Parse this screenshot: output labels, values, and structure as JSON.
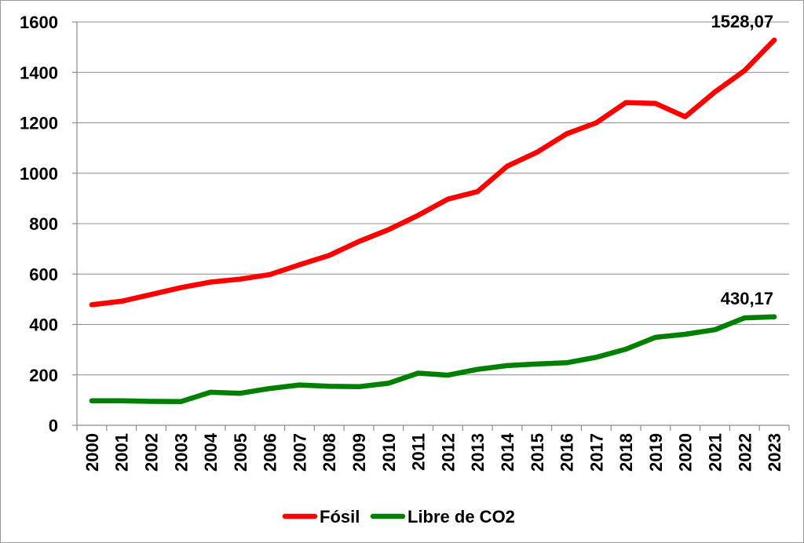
{
  "chart_data": {
    "type": "line",
    "title": "",
    "xlabel": "",
    "ylabel": "",
    "ylim": [
      0,
      1600
    ],
    "yticks": [
      0,
      200,
      400,
      600,
      800,
      1000,
      1200,
      1400,
      1600
    ],
    "grid": true,
    "legend_position": "bottom",
    "categories": [
      "2000",
      "2001",
      "2002",
      "2003",
      "2004",
      "2005",
      "2006",
      "2007",
      "2008",
      "2009",
      "2010",
      "2011",
      "2012",
      "2013",
      "2014",
      "2015",
      "2016",
      "2017",
      "2018",
      "2019",
      "2020",
      "2021",
      "2022",
      "2023"
    ],
    "series": [
      {
        "name": "Fósil",
        "color": "#ff0000",
        "values": [
          478,
          492,
          519,
          546,
          568,
          580,
          598,
          637,
          674,
          729,
          776,
          833,
          897,
          927,
          1028,
          1083,
          1156,
          1200,
          1280,
          1277,
          1224,
          1322,
          1407,
          1528.07
        ]
      },
      {
        "name": "Libre de CO2",
        "color": "#008000",
        "values": [
          97,
          97,
          95,
          94,
          131,
          127,
          146,
          160,
          155,
          153,
          167,
          207,
          199,
          222,
          237,
          243,
          248,
          270,
          302,
          349,
          361,
          379,
          426,
          430.17
        ]
      }
    ],
    "annotations": [
      {
        "series": "Fósil",
        "category": "2023",
        "text": "1528,07"
      },
      {
        "series": "Libre de CO2",
        "category": "2023",
        "text": "430,17"
      }
    ]
  }
}
